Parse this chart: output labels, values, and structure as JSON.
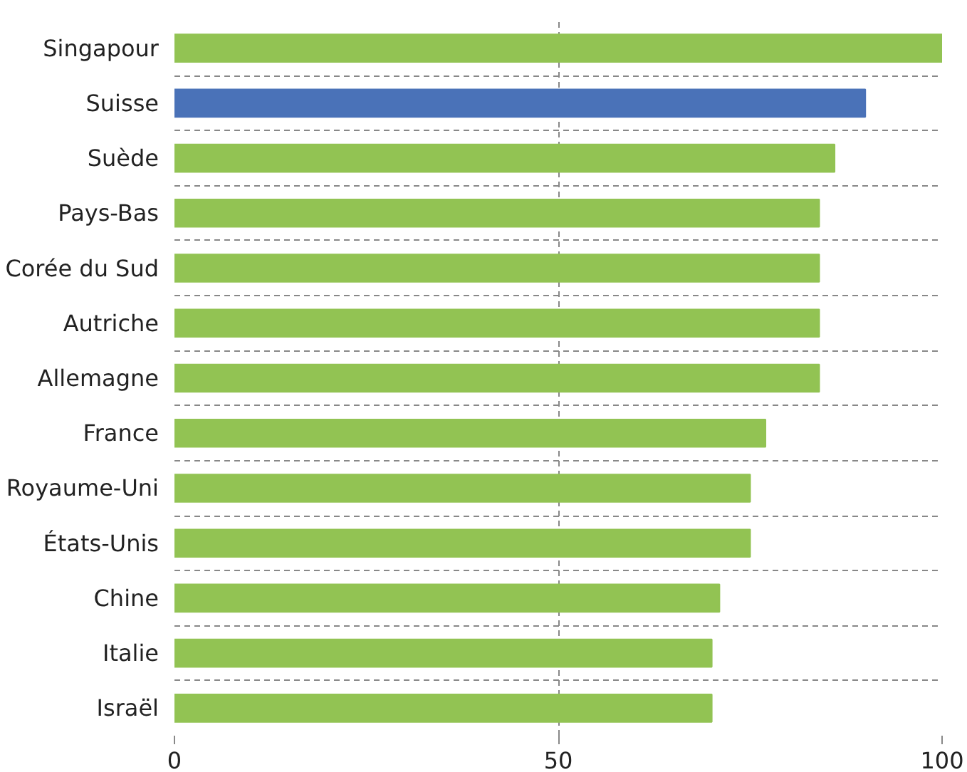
{
  "chart_data": {
    "type": "bar",
    "orientation": "horizontal",
    "categories": [
      "Singapour",
      "Suisse",
      "Suède",
      "Pays-Bas",
      "Corée du Sud",
      "Autriche",
      "Allemagne",
      "France",
      "Royaume-Uni",
      "États-Unis",
      "Chine",
      "Italie",
      "Israël"
    ],
    "values": [
      100,
      90,
      86,
      84,
      84,
      84,
      84,
      77,
      75,
      75,
      71,
      70,
      70
    ],
    "colors": [
      "#92c353",
      "#4a72b8",
      "#92c353",
      "#92c353",
      "#92c353",
      "#92c353",
      "#92c353",
      "#92c353",
      "#92c353",
      "#92c353",
      "#92c353",
      "#92c353",
      "#92c353"
    ],
    "xlim": [
      0,
      100
    ],
    "xticks": [
      0,
      50,
      100
    ],
    "grid": true
  }
}
